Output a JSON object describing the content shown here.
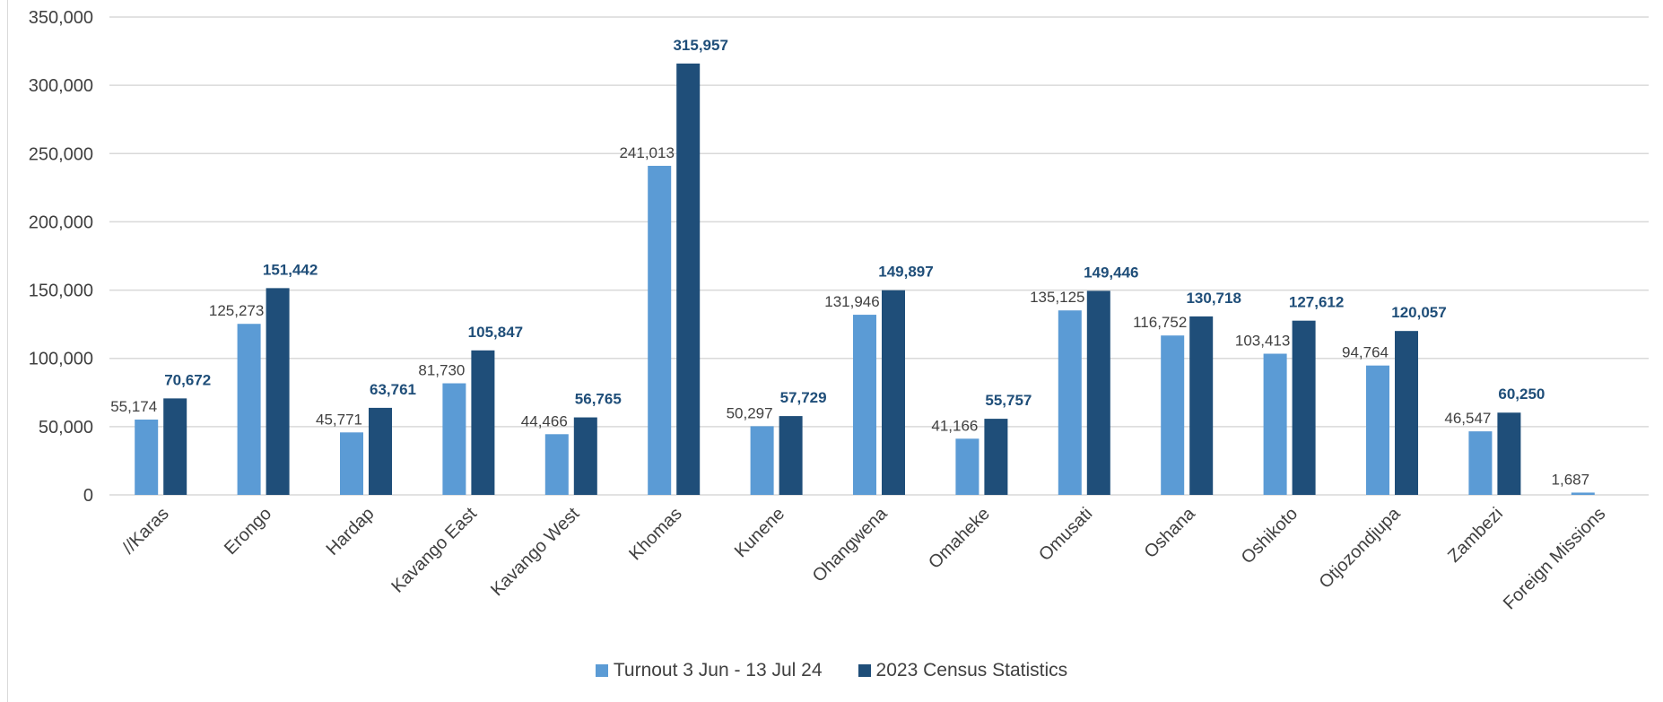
{
  "chart_data": {
    "type": "bar",
    "title": "",
    "xlabel": "",
    "ylabel": "",
    "ylim": [
      0,
      350000
    ],
    "yticks": [
      0,
      50000,
      100000,
      150000,
      200000,
      250000,
      300000,
      350000
    ],
    "ytick_labels": [
      "0",
      "50,000",
      "100,000",
      "150,000",
      "200,000",
      "250,000",
      "300,000",
      "350,000"
    ],
    "grid": true,
    "legend_position": "bottom",
    "categories": [
      "//Karas",
      "Erongo",
      "Hardap",
      "Kavango East",
      "Kavango West",
      "Khomas",
      "Kunene",
      "Ohangwena",
      "Omaheke",
      "Omusati",
      "Oshana",
      "Oshikoto",
      "Otjozondjupa",
      "Zambezi",
      "Foreign Missions"
    ],
    "series": [
      {
        "name": "Turnout 3 Jun - 13 Jul 24",
        "color": "#5b9bd5",
        "values": [
          55174,
          125273,
          45771,
          81730,
          44466,
          241013,
          50297,
          131946,
          41166,
          135125,
          116752,
          103413,
          94764,
          46547,
          1687
        ],
        "labels": [
          "55,174",
          "125,273",
          "45,771",
          "81,730",
          "44,466",
          "241,013",
          "50,297",
          "131,946",
          "41,166",
          "135,125",
          "116,752",
          "103,413",
          "94,764",
          "46,547",
          "1,687"
        ]
      },
      {
        "name": "2023 Census Statistics",
        "color": "#1f4e79",
        "values": [
          70672,
          151442,
          63761,
          105847,
          56765,
          315957,
          57729,
          149897,
          55757,
          149446,
          130718,
          127612,
          120057,
          60250,
          null
        ],
        "labels": [
          "70,672",
          "151,442",
          "63,761",
          "105,847",
          "56,765",
          "315,957",
          "57,729",
          "149,897",
          "55,757",
          "149,446",
          "130,718",
          "127,612",
          "120,057",
          "60,250",
          ""
        ]
      }
    ]
  }
}
